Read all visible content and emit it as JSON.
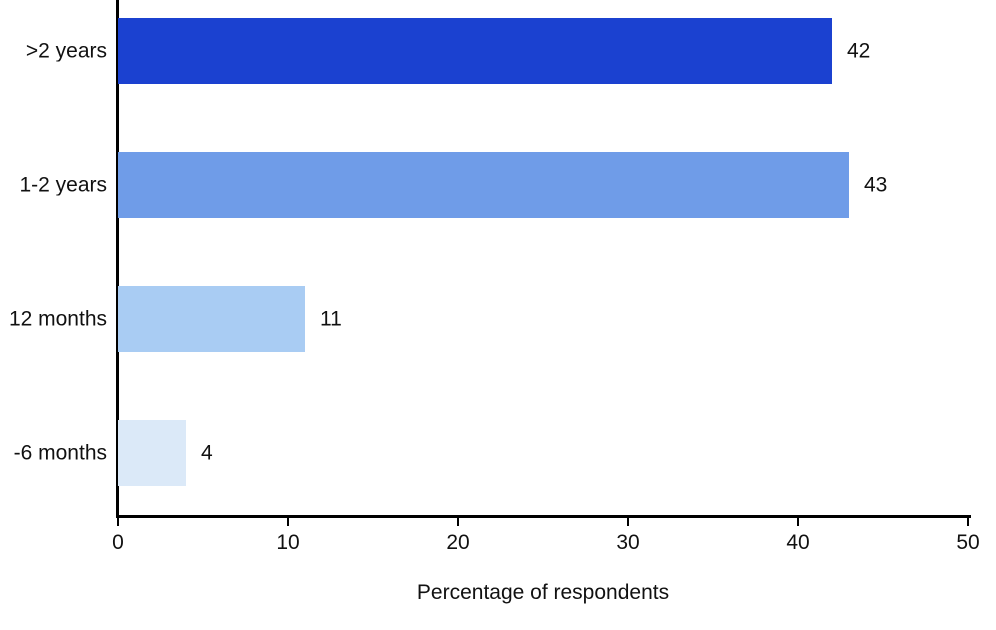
{
  "chart_data": {
    "type": "bar",
    "orientation": "horizontal",
    "title": "",
    "categories": [
      ">2 years",
      "1-2 years",
      "12 months",
      "-6 months"
    ],
    "values": [
      42,
      43,
      11,
      4
    ],
    "value_labels": [
      "42",
      "43",
      "11",
      "4"
    ],
    "bar_colors": [
      "#1b41d0",
      "#6f9ce8",
      "#a9ccf3",
      "#dbe9f8"
    ],
    "xlabel": "Percentage of respondents",
    "ylabel": "",
    "xlim": [
      0,
      50
    ],
    "x_ticks": [
      0,
      10,
      20,
      30,
      40,
      50
    ],
    "grid": false,
    "legend": false,
    "axis_color": "#000000"
  }
}
